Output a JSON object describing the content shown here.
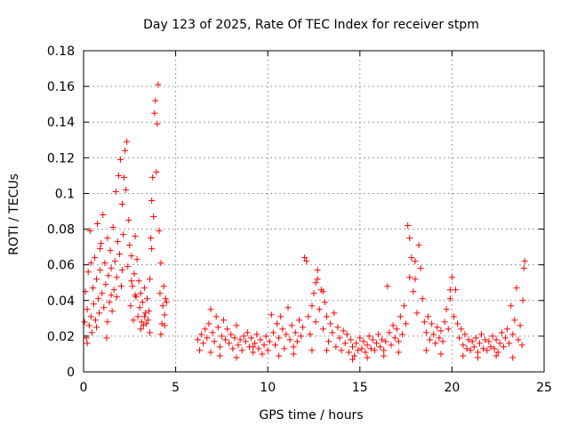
{
  "chart_data": {
    "type": "scatter",
    "title": "Day 123 of 2025, Rate Of TEC Index for receiver stpm",
    "xlabel": "GPS time / hours",
    "ylabel": "ROTI / TECUs",
    "xlim": [
      0,
      25
    ],
    "ylim": [
      0,
      0.18
    ],
    "xticks": [
      "0",
      "5",
      "10",
      "15",
      "20",
      "25"
    ],
    "yticks": [
      "0",
      "0.02",
      "0.04",
      "0.06",
      "0.08",
      "0.1",
      "0.12",
      "0.14",
      "0.16",
      "0.18"
    ],
    "grid": true,
    "marker": "plus",
    "color": "#ff0000",
    "series": [
      {
        "values": [
          [
            0.05,
            0.028
          ],
          [
            0.1,
            0.045
          ],
          [
            0.15,
            0.019
          ],
          [
            0.2,
            0.035
          ],
          [
            0.25,
            0.056
          ],
          [
            0.3,
            0.026
          ],
          [
            0.35,
            0.079
          ],
          [
            0.4,
            0.031
          ],
          [
            0.45,
            0.022
          ],
          [
            0.5,
            0.047
          ],
          [
            0.55,
            0.038
          ],
          [
            0.6,
            0.064
          ],
          [
            0.65,
            0.029
          ],
          [
            0.7,
            0.052
          ],
          [
            0.75,
            0.083
          ],
          [
            0.8,
            0.041
          ],
          [
            0.85,
            0.033
          ],
          [
            0.9,
            0.057
          ],
          [
            0.95,
            0.072
          ],
          [
            1.0,
            0.044
          ],
          [
            1.05,
            0.088
          ],
          [
            1.1,
            0.036
          ],
          [
            1.15,
            0.061
          ],
          [
            1.2,
            0.049
          ],
          [
            1.25,
            0.019
          ],
          [
            1.3,
            0.075
          ],
          [
            1.35,
            0.054
          ],
          [
            1.4,
            0.039
          ],
          [
            1.45,
            0.068
          ],
          [
            1.5,
            0.058
          ],
          [
            1.55,
            0.034
          ],
          [
            1.6,
            0.081
          ],
          [
            1.65,
            0.046
          ],
          [
            1.7,
            0.062
          ],
          [
            1.75,
            0.101
          ],
          [
            1.8,
            0.053
          ],
          [
            1.85,
            0.073
          ],
          [
            1.9,
            0.11
          ],
          [
            1.95,
            0.066
          ],
          [
            2.0,
            0.119
          ],
          [
            2.05,
            0.048
          ],
          [
            2.1,
            0.094
          ],
          [
            2.15,
            0.077
          ],
          [
            2.2,
            0.109
          ],
          [
            2.25,
            0.124
          ],
          [
            2.3,
            0.102
          ],
          [
            2.35,
            0.129
          ],
          [
            2.4,
            0.059
          ],
          [
            2.45,
            0.085
          ],
          [
            2.5,
            0.071
          ],
          [
            2.55,
            0.037
          ],
          [
            2.6,
            0.065
          ],
          [
            2.65,
            0.048
          ],
          [
            2.7,
            0.029
          ],
          [
            2.75,
            0.055
          ],
          [
            2.8,
            0.076
          ],
          [
            2.85,
            0.042
          ],
          [
            2.9,
            0.063
          ],
          [
            2.95,
            0.031
          ],
          [
            3.0,
            0.051
          ],
          [
            3.05,
            0.036
          ],
          [
            3.1,
            0.044
          ],
          [
            3.15,
            0.028
          ],
          [
            3.2,
            0.039
          ],
          [
            3.25,
            0.026
          ],
          [
            3.3,
            0.047
          ],
          [
            3.35,
            0.033
          ],
          [
            3.4,
            0.027
          ],
          [
            3.45,
            0.041
          ],
          [
            3.5,
            0.029
          ],
          [
            3.55,
            0.034
          ],
          [
            3.6,
            0.052
          ],
          [
            3.65,
            0.075
          ],
          [
            3.7,
            0.096
          ],
          [
            3.75,
            0.109
          ],
          [
            3.8,
            0.087
          ],
          [
            3.85,
            0.145
          ],
          [
            3.9,
            0.152
          ],
          [
            3.95,
            0.112
          ],
          [
            4.0,
            0.139
          ],
          [
            4.05,
            0.161
          ],
          [
            4.1,
            0.079
          ],
          [
            4.15,
            0.044
          ],
          [
            4.2,
            0.061
          ],
          [
            4.25,
            0.027
          ],
          [
            4.3,
            0.037
          ],
          [
            4.35,
            0.048
          ],
          [
            4.4,
            0.032
          ],
          [
            4.45,
            0.041
          ],
          [
            4.5,
            0.039
          ],
          [
            6.2,
            0.018
          ],
          [
            6.3,
            0.012
          ],
          [
            6.4,
            0.021
          ],
          [
            6.5,
            0.016
          ],
          [
            6.6,
            0.024
          ],
          [
            6.7,
            0.019
          ],
          [
            6.8,
            0.027
          ],
          [
            6.9,
            0.035
          ],
          [
            7.0,
            0.022
          ],
          [
            7.1,
            0.017
          ],
          [
            7.2,
            0.031
          ],
          [
            7.3,
            0.025
          ],
          [
            7.4,
            0.014
          ],
          [
            7.5,
            0.02
          ],
          [
            7.6,
            0.029
          ],
          [
            7.7,
            0.018
          ],
          [
            7.8,
            0.024
          ],
          [
            7.9,
            0.016
          ],
          [
            8.0,
            0.021
          ],
          [
            8.1,
            0.013
          ],
          [
            8.2,
            0.019
          ],
          [
            8.3,
            0.026
          ],
          [
            8.4,
            0.015
          ],
          [
            8.5,
            0.018
          ],
          [
            8.6,
            0.012
          ],
          [
            8.7,
            0.02
          ],
          [
            8.8,
            0.017
          ],
          [
            8.9,
            0.022
          ],
          [
            9.0,
            0.014
          ],
          [
            9.1,
            0.019
          ],
          [
            9.2,
            0.011
          ],
          [
            9.3,
            0.016
          ],
          [
            9.4,
            0.021
          ],
          [
            9.5,
            0.013
          ],
          [
            9.6,
            0.018
          ],
          [
            9.7,
            0.01
          ],
          [
            9.8,
            0.015
          ],
          [
            9.9,
            0.02
          ],
          [
            10.0,
            0.012
          ],
          [
            10.1,
            0.017
          ],
          [
            10.2,
            0.032
          ],
          [
            10.3,
            0.022
          ],
          [
            10.4,
            0.015
          ],
          [
            10.5,
            0.027
          ],
          [
            10.6,
            0.019
          ],
          [
            10.7,
            0.031
          ],
          [
            10.8,
            0.024
          ],
          [
            10.9,
            0.013
          ],
          [
            11.0,
            0.021
          ],
          [
            11.1,
            0.036
          ],
          [
            11.2,
            0.018
          ],
          [
            11.3,
            0.026
          ],
          [
            11.4,
            0.014
          ],
          [
            11.5,
            0.022
          ],
          [
            11.6,
            0.017
          ],
          [
            11.7,
            0.029
          ],
          [
            11.8,
            0.02
          ],
          [
            11.9,
            0.025
          ],
          [
            12.0,
            0.064
          ],
          [
            12.1,
            0.062
          ],
          [
            12.2,
            0.031
          ],
          [
            12.3,
            0.021
          ],
          [
            12.4,
            0.037
          ],
          [
            12.5,
            0.044
          ],
          [
            12.6,
            0.028
          ],
          [
            12.7,
            0.052
          ],
          [
            12.8,
            0.035
          ],
          [
            12.9,
            0.046
          ],
          [
            13.0,
            0.024
          ],
          [
            13.1,
            0.039
          ],
          [
            13.2,
            0.031
          ],
          [
            13.3,
            0.017
          ],
          [
            13.4,
            0.027
          ],
          [
            13.5,
            0.022
          ],
          [
            13.6,
            0.033
          ],
          [
            13.7,
            0.014
          ],
          [
            13.8,
            0.025
          ],
          [
            13.9,
            0.019
          ],
          [
            14.0,
            0.012
          ],
          [
            14.1,
            0.023
          ],
          [
            14.2,
            0.016
          ],
          [
            14.3,
            0.021
          ],
          [
            14.4,
            0.011
          ],
          [
            14.5,
            0.018
          ],
          [
            14.6,
            0.014
          ],
          [
            14.7,
            0.009
          ],
          [
            14.8,
            0.016
          ],
          [
            14.9,
            0.012
          ],
          [
            15.0,
            0.019
          ],
          [
            15.1,
            0.013
          ],
          [
            15.2,
            0.017
          ],
          [
            15.3,
            0.011
          ],
          [
            15.4,
            0.015
          ],
          [
            15.5,
            0.02
          ],
          [
            15.6,
            0.013
          ],
          [
            15.7,
            0.018
          ],
          [
            15.8,
            0.012
          ],
          [
            15.9,
            0.016
          ],
          [
            16.0,
            0.021
          ],
          [
            16.1,
            0.014
          ],
          [
            16.2,
            0.018
          ],
          [
            16.3,
            0.012
          ],
          [
            16.4,
            0.017
          ],
          [
            16.5,
            0.048
          ],
          [
            16.6,
            0.022
          ],
          [
            16.7,
            0.015
          ],
          [
            16.8,
            0.026
          ],
          [
            16.9,
            0.019
          ],
          [
            17.0,
            0.024
          ],
          [
            17.1,
            0.017
          ],
          [
            17.2,
            0.031
          ],
          [
            17.3,
            0.021
          ],
          [
            17.4,
            0.037
          ],
          [
            17.5,
            0.027
          ],
          [
            17.6,
            0.082
          ],
          [
            17.7,
            0.075
          ],
          [
            17.8,
            0.064
          ],
          [
            17.9,
            0.045
          ],
          [
            18.0,
            0.052
          ],
          [
            18.1,
            0.033
          ],
          [
            18.2,
            0.071
          ],
          [
            18.3,
            0.058
          ],
          [
            18.4,
            0.041
          ],
          [
            18.5,
            0.028
          ],
          [
            18.6,
            0.022
          ],
          [
            18.7,
            0.031
          ],
          [
            18.8,
            0.018
          ],
          [
            18.9,
            0.027
          ],
          [
            19.0,
            0.021
          ],
          [
            19.1,
            0.016
          ],
          [
            19.2,
            0.025
          ],
          [
            19.3,
            0.019
          ],
          [
            19.4,
            0.023
          ],
          [
            19.5,
            0.017
          ],
          [
            19.6,
            0.028
          ],
          [
            19.7,
            0.035
          ],
          [
            19.8,
            0.024
          ],
          [
            19.9,
            0.041
          ],
          [
            20.0,
            0.053
          ],
          [
            20.1,
            0.031
          ],
          [
            20.2,
            0.046
          ],
          [
            20.3,
            0.027
          ],
          [
            20.4,
            0.019
          ],
          [
            20.5,
            0.024
          ],
          [
            20.6,
            0.015
          ],
          [
            20.7,
            0.021
          ],
          [
            20.8,
            0.013
          ],
          [
            20.9,
            0.018
          ],
          [
            21.0,
            0.012
          ],
          [
            21.1,
            0.017
          ],
          [
            21.2,
            0.014
          ],
          [
            21.3,
            0.019
          ],
          [
            21.4,
            0.011
          ],
          [
            21.5,
            0.016
          ],
          [
            21.6,
            0.021
          ],
          [
            21.7,
            0.013
          ],
          [
            21.8,
            0.018
          ],
          [
            21.9,
            0.012
          ],
          [
            22.0,
            0.017
          ],
          [
            22.1,
            0.014
          ],
          [
            22.2,
            0.02
          ],
          [
            22.3,
            0.013
          ],
          [
            22.4,
            0.018
          ],
          [
            22.5,
            0.011
          ],
          [
            22.6,
            0.016
          ],
          [
            22.7,
            0.022
          ],
          [
            22.8,
            0.014
          ],
          [
            22.9,
            0.019
          ],
          [
            23.0,
            0.024
          ],
          [
            23.1,
            0.016
          ],
          [
            23.2,
            0.037
          ],
          [
            23.3,
            0.021
          ],
          [
            23.4,
            0.029
          ],
          [
            23.5,
            0.047
          ],
          [
            23.6,
            0.018
          ],
          [
            23.7,
            0.026
          ],
          [
            23.8,
            0.015
          ],
          [
            23.85,
            0.04
          ],
          [
            23.9,
            0.058
          ],
          [
            23.95,
            0.062
          ],
          [
            0.2,
            0.016
          ],
          [
            0.7,
            0.025
          ],
          [
            1.3,
            0.028
          ],
          [
            1.8,
            0.042
          ],
          [
            2.6,
            0.051
          ],
          [
            3.1,
            0.024
          ],
          [
            3.6,
            0.022
          ],
          [
            4.2,
            0.021
          ],
          [
            0.4,
            0.061
          ],
          [
            0.9,
            0.069
          ],
          [
            1.5,
            0.043
          ],
          [
            2.1,
            0.057
          ],
          [
            2.8,
            0.043
          ],
          [
            3.3,
            0.031
          ],
          [
            3.7,
            0.069
          ],
          [
            4.4,
            0.026
          ],
          [
            6.9,
            0.011
          ],
          [
            7.4,
            0.009
          ],
          [
            8.3,
            0.008
          ],
          [
            9.2,
            0.014
          ],
          [
            10.6,
            0.009
          ],
          [
            11.4,
            0.01
          ],
          [
            12.4,
            0.012
          ],
          [
            13.2,
            0.012
          ],
          [
            14.6,
            0.007
          ],
          [
            15.4,
            0.008
          ],
          [
            16.3,
            0.009
          ],
          [
            17.1,
            0.011
          ],
          [
            18.6,
            0.012
          ],
          [
            19.4,
            0.01
          ],
          [
            20.6,
            0.009
          ],
          [
            21.4,
            0.008
          ],
          [
            22.4,
            0.009
          ],
          [
            23.3,
            0.008
          ],
          [
            12.6,
            0.05
          ],
          [
            12.7,
            0.057
          ],
          [
            13.0,
            0.045
          ],
          [
            18.0,
            0.062
          ],
          [
            17.7,
            0.053
          ],
          [
            19.9,
            0.046
          ]
        ]
      }
    ]
  }
}
